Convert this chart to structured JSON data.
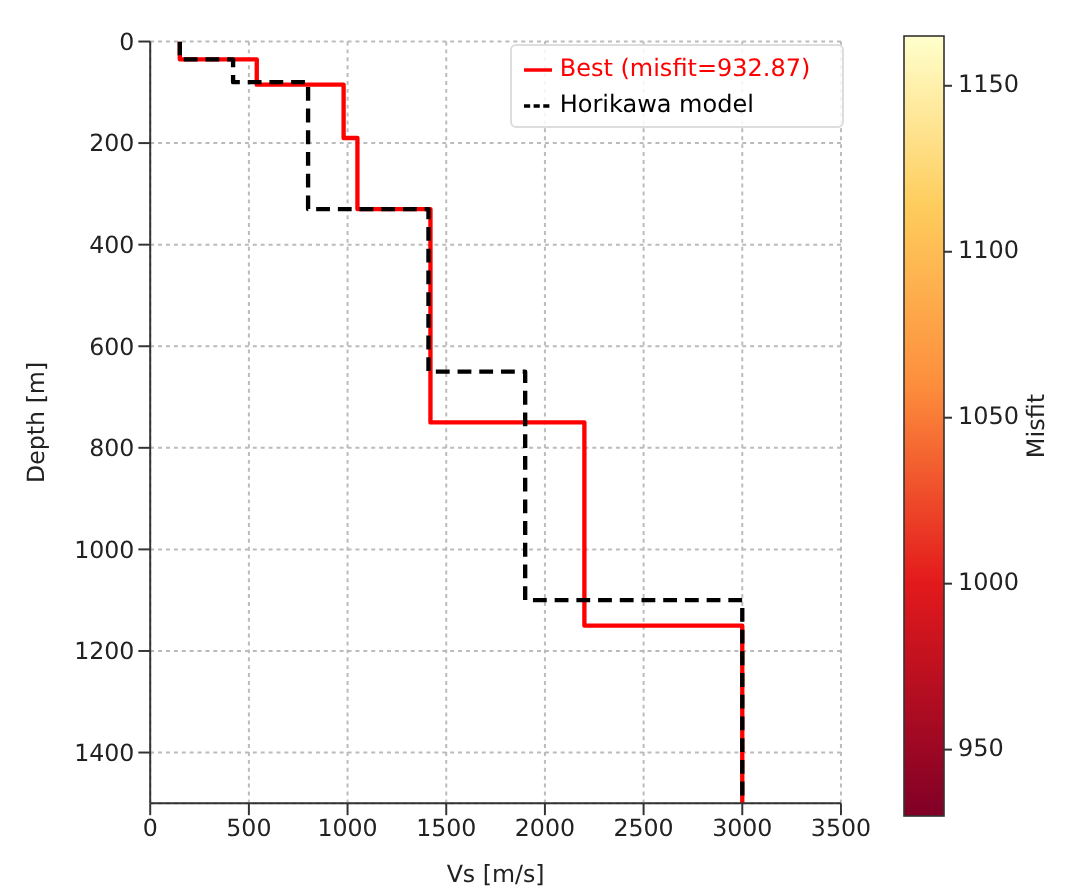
{
  "chart_data": {
    "type": "line",
    "xlabel": "Vs [m/s]",
    "ylabel": "Depth [m]",
    "clabel": "Misfit",
    "xlim": [
      0,
      3500
    ],
    "xticks": [
      0,
      500,
      1000,
      1500,
      2000,
      2500,
      3000,
      3500
    ],
    "ylim": [
      1500,
      0
    ],
    "yticks": [
      0,
      200,
      400,
      600,
      800,
      1000,
      1200,
      1400
    ],
    "clim": [
      930,
      1165
    ],
    "cticks": [
      950,
      1000,
      1050,
      1100,
      1150
    ],
    "grid": true,
    "legend": "top right",
    "marker": "none",
    "series": [
      {
        "name": "Best (misfit=932.87)",
        "color": "#ff0000",
        "line_style": "solid",
        "x": [
          150,
          150,
          540,
          540,
          980,
          980,
          1050,
          1050,
          1420,
          1420,
          2200,
          2200,
          3000,
          3000
        ],
        "values": [
          0,
          35,
          35,
          85,
          85,
          190,
          190,
          330,
          330,
          750,
          750,
          1150,
          1150,
          1500
        ]
      },
      {
        "name": "Horikawa model",
        "color": "#000000",
        "line_style": "dashed",
        "x": [
          150,
          150,
          420,
          420,
          800,
          800,
          1410,
          1410,
          1900,
          1900,
          3000,
          3000
        ],
        "values": [
          0,
          35,
          35,
          80,
          80,
          330,
          330,
          650,
          650,
          1100,
          1100,
          1500
        ]
      }
    ]
  }
}
